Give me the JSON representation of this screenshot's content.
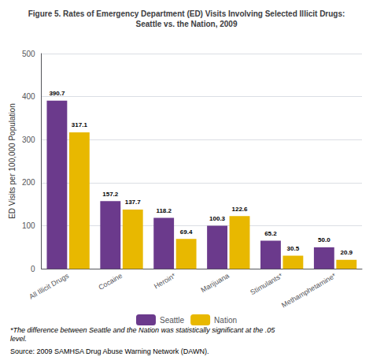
{
  "chart_data": {
    "type": "bar",
    "title": "Figure 5. Rates of Emergency Department (ED) Visits Involving Selected Illicit Drugs:\nSeattle vs. the Nation, 2009",
    "categories": [
      "All Illicit Drugs",
      "Cocaine",
      "Heroin*",
      "Marijuana",
      "Stimulants*",
      "Methamphetamine*"
    ],
    "series": [
      {
        "name": "Seattle",
        "color": "#6B3A8C",
        "values": [
          390.7,
          157.2,
          118.2,
          100.3,
          65.2,
          50.0
        ],
        "value_labels": [
          "390.7",
          "157.2",
          "118.2",
          "100.3",
          "65.2",
          "50.0"
        ]
      },
      {
        "name": "Nation",
        "color": "#E8B800",
        "values": [
          317.1,
          137.7,
          69.4,
          122.6,
          30.5,
          20.9
        ],
        "value_labels": [
          "317.1",
          "137.7",
          "69.4",
          "122.6",
          "30.5",
          "20.9"
        ]
      }
    ],
    "ylabel": "ED Visits per 100,000 Population",
    "ylim": [
      0,
      500
    ],
    "yticks": [
      0,
      100,
      200,
      300,
      400,
      500
    ],
    "grid": true,
    "legend": "bottom",
    "data_labels": true,
    "annotations": [
      "*The difference between Seattle and the Nation was statistically significant at the .05 level.",
      "Source: 2009 SAMHSA Drug Abuse Warning Network (DAWN)."
    ]
  }
}
